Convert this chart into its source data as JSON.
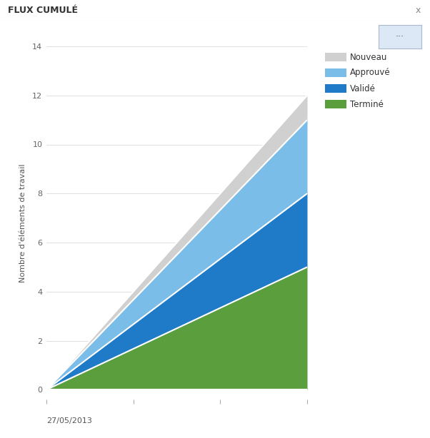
{
  "title": "FLUX CUMULÉ",
  "xlabel": "27/05/2013",
  "ylabel": "Nombre d'éléments de travail",
  "ylim": [
    -0.4,
    14
  ],
  "xlim": [
    0,
    1
  ],
  "x_values": [
    0,
    1
  ],
  "series": {
    "Terminé": [
      0,
      5
    ],
    "Validé": [
      0,
      3
    ],
    "Approuvé": [
      0,
      3
    ],
    "Nouveau": [
      0,
      1
    ]
  },
  "colors": {
    "Terminé": "#5a9e3e",
    "Validé": "#1f7bc7",
    "Approuvé": "#7abde8",
    "Nouveau": "#d0d0d0"
  },
  "legend_order": [
    "Nouveau",
    "Approuvé",
    "Validé",
    "Terminé"
  ],
  "yticks": [
    0,
    2,
    4,
    6,
    8,
    10,
    12,
    14
  ],
  "background_color": "#ffffff",
  "title_bg": "#f0f0f0",
  "title_fontsize": 9,
  "axis_label_fontsize": 8,
  "legend_fontsize": 8.5,
  "line_color": "#ffffff",
  "line_width": 1.5
}
